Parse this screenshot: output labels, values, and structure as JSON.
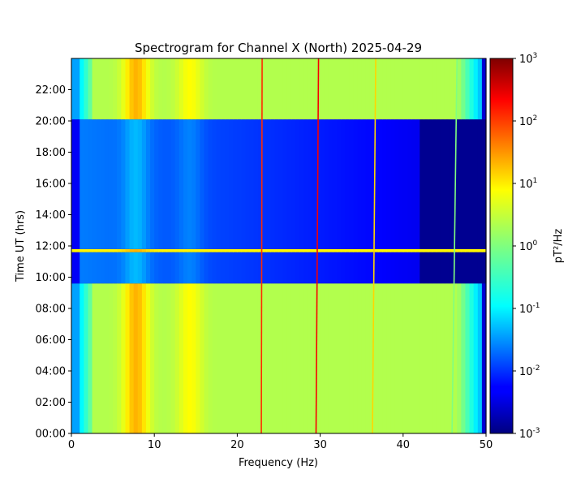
{
  "chart_data": {
    "type": "heatmap",
    "title": "Spectrogram for Channel X (North) 2025-04-29",
    "xlabel": "Frequency (Hz)",
    "ylabel": "Time UT (hrs)",
    "xlim": [
      0,
      50
    ],
    "ylim_hours": [
      0,
      24
    ],
    "x_ticks": [
      0,
      10,
      20,
      30,
      40,
      50
    ],
    "y_ticks": [
      "00:00",
      "02:00",
      "04:00",
      "06:00",
      "08:00",
      "10:00",
      "12:00",
      "14:00",
      "16:00",
      "18:00",
      "20:00",
      "22:00"
    ],
    "colorbar": {
      "label": "pT²/Hz",
      "scale": "log",
      "colormap": "jet",
      "range": [
        0.001,
        1000
      ],
      "ticks": [
        {
          "exp": "3"
        },
        {
          "exp": "2"
        },
        {
          "exp": "1"
        },
        {
          "exp": "0"
        },
        {
          "exp": "-1"
        },
        {
          "exp": "-2"
        },
        {
          "exp": "-3"
        }
      ]
    },
    "time_segments": [
      {
        "start": 0.0,
        "end": 9.6,
        "state": "strong"
      },
      {
        "start": 9.6,
        "end": 11.6,
        "state": "weak"
      },
      {
        "start": 11.6,
        "end": 11.8,
        "state": "bright_band"
      },
      {
        "start": 11.8,
        "end": 20.1,
        "state": "weak"
      },
      {
        "start": 20.1,
        "end": 24.0,
        "state": "strong"
      }
    ],
    "schumann_peaks_hz": [
      7.8,
      14.3
    ],
    "line_interference": [
      {
        "freq_start": 22.9,
        "freq_end": 23.0,
        "log_power": 2.0
      },
      {
        "freq_start": 29.5,
        "freq_end": 29.8,
        "log_power": 2.3
      },
      {
        "freq_start": 36.3,
        "freq_end": 36.7,
        "log_power": 1.0
      },
      {
        "freq_start": 45.9,
        "freq_end": 46.5,
        "log_power": 0.0
      }
    ]
  }
}
